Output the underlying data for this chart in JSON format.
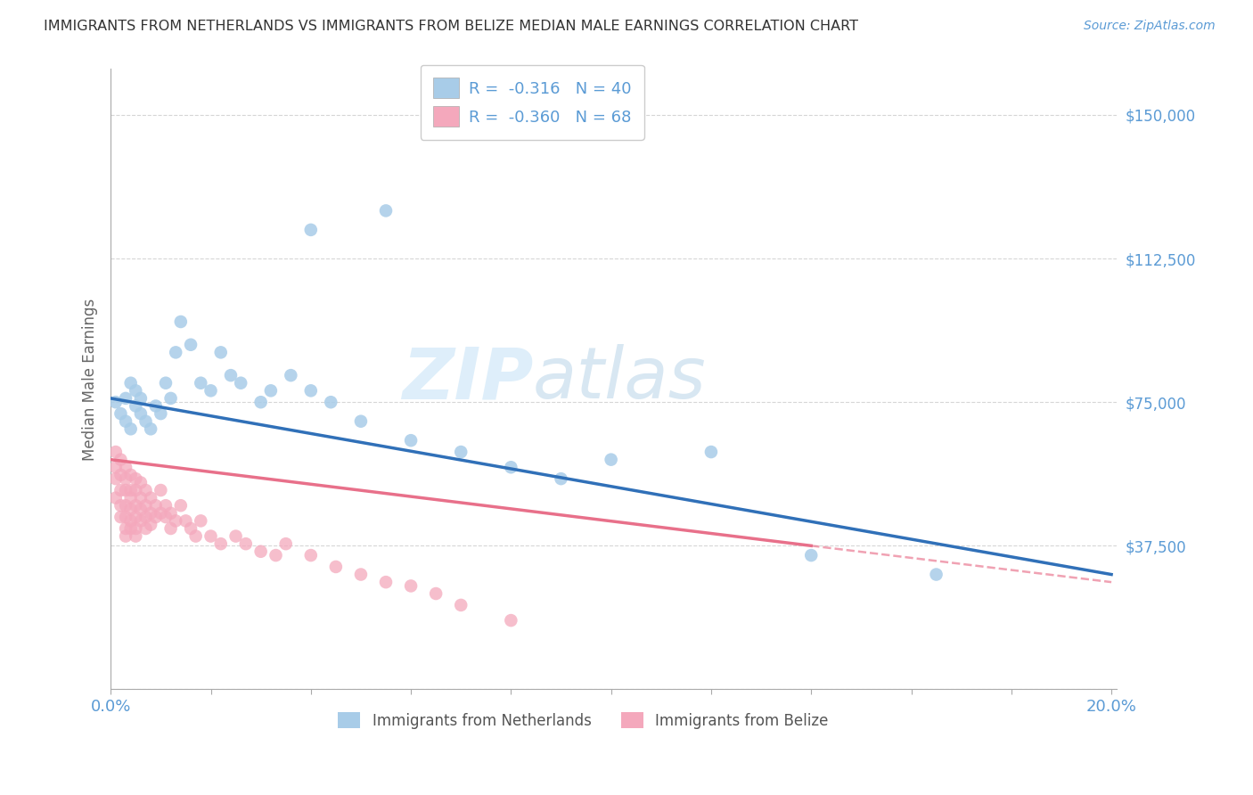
{
  "title": "IMMIGRANTS FROM NETHERLANDS VS IMMIGRANTS FROM BELIZE MEDIAN MALE EARNINGS CORRELATION CHART",
  "source": "Source: ZipAtlas.com",
  "ylabel": "Median Male Earnings",
  "ytick_vals": [
    0,
    37500,
    75000,
    112500,
    150000
  ],
  "ytick_labels": [
    "",
    "$37,500",
    "$75,000",
    "$112,500",
    "$150,000"
  ],
  "ylim": [
    0,
    162000
  ],
  "xlim": [
    0.0,
    0.201
  ],
  "color_netherlands": "#a8cce8",
  "color_belize": "#f4a8bc",
  "trendline_nl_color": "#3070b8",
  "trendline_bz_color": "#e8708a",
  "background_color": "#ffffff",
  "grid_color": "#cccccc",
  "watermark_zip": "ZIP",
  "watermark_atlas": "atlas",
  "legend_r_nl": "-0.316",
  "legend_n_nl": "40",
  "legend_r_bz": "-0.360",
  "legend_n_bz": "68",
  "netherlands_x": [
    0.001,
    0.002,
    0.003,
    0.003,
    0.004,
    0.004,
    0.005,
    0.005,
    0.006,
    0.006,
    0.007,
    0.008,
    0.009,
    0.01,
    0.011,
    0.012,
    0.013,
    0.014,
    0.016,
    0.018,
    0.02,
    0.022,
    0.024,
    0.026,
    0.03,
    0.032,
    0.036,
    0.04,
    0.044,
    0.05,
    0.06,
    0.07,
    0.08,
    0.09,
    0.1,
    0.12,
    0.14,
    0.165,
    0.04,
    0.055
  ],
  "netherlands_y": [
    75000,
    72000,
    76000,
    70000,
    68000,
    80000,
    74000,
    78000,
    72000,
    76000,
    70000,
    68000,
    74000,
    72000,
    80000,
    76000,
    88000,
    96000,
    90000,
    80000,
    78000,
    88000,
    82000,
    80000,
    75000,
    78000,
    82000,
    78000,
    75000,
    70000,
    65000,
    62000,
    58000,
    55000,
    60000,
    62000,
    35000,
    30000,
    120000,
    125000
  ],
  "belize_x": [
    0.001,
    0.001,
    0.001,
    0.001,
    0.002,
    0.002,
    0.002,
    0.002,
    0.002,
    0.003,
    0.003,
    0.003,
    0.003,
    0.003,
    0.003,
    0.003,
    0.004,
    0.004,
    0.004,
    0.004,
    0.004,
    0.004,
    0.005,
    0.005,
    0.005,
    0.005,
    0.005,
    0.005,
    0.006,
    0.006,
    0.006,
    0.006,
    0.007,
    0.007,
    0.007,
    0.007,
    0.008,
    0.008,
    0.008,
    0.009,
    0.009,
    0.01,
    0.01,
    0.011,
    0.011,
    0.012,
    0.012,
    0.013,
    0.014,
    0.015,
    0.016,
    0.017,
    0.018,
    0.02,
    0.022,
    0.025,
    0.027,
    0.03,
    0.033,
    0.035,
    0.04,
    0.045,
    0.05,
    0.055,
    0.06,
    0.065,
    0.07,
    0.08
  ],
  "belize_y": [
    62000,
    58000,
    55000,
    50000,
    60000,
    56000,
    52000,
    48000,
    45000,
    58000,
    55000,
    52000,
    48000,
    45000,
    42000,
    40000,
    56000,
    52000,
    50000,
    47000,
    44000,
    42000,
    55000,
    52000,
    48000,
    45000,
    42000,
    40000,
    54000,
    50000,
    47000,
    44000,
    52000,
    48000,
    45000,
    42000,
    50000,
    46000,
    43000,
    48000,
    45000,
    52000,
    46000,
    48000,
    45000,
    46000,
    42000,
    44000,
    48000,
    44000,
    42000,
    40000,
    44000,
    40000,
    38000,
    40000,
    38000,
    36000,
    35000,
    38000,
    35000,
    32000,
    30000,
    28000,
    27000,
    25000,
    22000,
    18000
  ],
  "trendline_nl_x0": 0.0,
  "trendline_nl_y0": 76000,
  "trendline_nl_x1": 0.2,
  "trendline_nl_y1": 30000,
  "trendline_bz_solid_x0": 0.0,
  "trendline_bz_solid_y0": 60000,
  "trendline_bz_solid_x1": 0.14,
  "trendline_bz_solid_y1": 37500,
  "trendline_bz_dash_x0": 0.14,
  "trendline_bz_dash_y0": 37500,
  "trendline_bz_dash_x1": 0.2,
  "trendline_bz_dash_y1": 28000
}
